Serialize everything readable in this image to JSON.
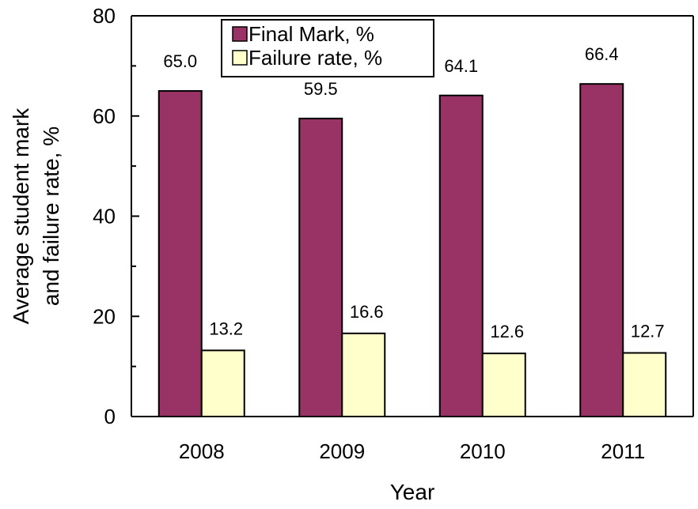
{
  "chart_data": {
    "type": "bar",
    "title": "",
    "xlabel": "Year",
    "ylabel": [
      "Average student mark",
      "and failure rate, %"
    ],
    "categories": [
      "2008",
      "2009",
      "2010",
      "2011"
    ],
    "series": [
      {
        "name": "Final Mark, %",
        "values": [
          65.0,
          59.5,
          64.1,
          66.4
        ],
        "labels": [
          "65.0",
          "59.5",
          "64.1",
          "66.4"
        ],
        "color": "#993366"
      },
      {
        "name": "Failure rate, %",
        "values": [
          13.2,
          16.6,
          12.6,
          12.7
        ],
        "labels": [
          "13.2",
          "16.6",
          "12.6",
          "12.7"
        ],
        "color": "#FFFFCC"
      }
    ],
    "ylim": [
      0,
      80
    ],
    "yticks": [
      0,
      20,
      40,
      60,
      80
    ],
    "grid": false,
    "legend_position": "top-center"
  }
}
